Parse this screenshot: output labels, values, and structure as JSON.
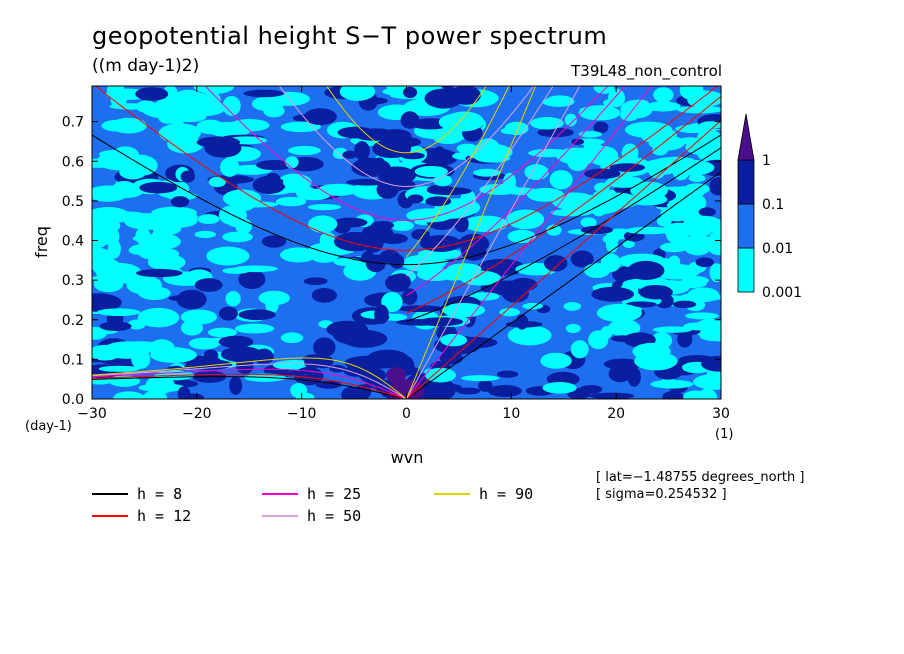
{
  "chart_data": {
    "type": "heatmap",
    "title": "geopotential height S−T power spectrum",
    "subtitle": "((m day-1)2)",
    "run_label": "T39L48_non_control",
    "xlabel": "wvn",
    "ylabel": "freq",
    "x_unit": "(1)",
    "y_unit": "(day-1)",
    "xlim": [
      -30,
      30
    ],
    "ylim": [
      0,
      0.79
    ],
    "x_ticks": [
      "−30",
      "−20",
      "−10",
      "0",
      "10",
      "20",
      "30"
    ],
    "x_tick_values": [
      -30,
      -20,
      -10,
      0,
      10,
      20,
      30
    ],
    "y_ticks": [
      "0.0",
      "0.1",
      "0.2",
      "0.3",
      "0.4",
      "0.5",
      "0.6",
      "0.7"
    ],
    "y_tick_values": [
      0,
      0.1,
      0.2,
      0.3,
      0.4,
      0.5,
      0.6,
      0.7
    ],
    "colorbar": {
      "levels": [
        "0.001",
        "0.01",
        "0.1",
        "1"
      ],
      "colors": [
        "#00ffff",
        "#1e6ff0",
        "#0a1ea0",
        "#4b0f8c"
      ]
    },
    "dispersion_curves": [
      {
        "name": "h =  8",
        "h": 8,
        "color": "#000000"
      },
      {
        "name": "h = 12",
        "h": 12,
        "color": "#ff0000"
      },
      {
        "name": "h = 25",
        "h": 25,
        "color": "#ff00c8"
      },
      {
        "name": "h = 50",
        "h": 50,
        "color": "#dca0dc"
      },
      {
        "name": "h = 90",
        "h": 90,
        "color": "#e6d200"
      }
    ],
    "annotations": [
      "[ lat=−1.48755 degrees_north ]",
      "[ sigma=0.254532 ]"
    ]
  }
}
